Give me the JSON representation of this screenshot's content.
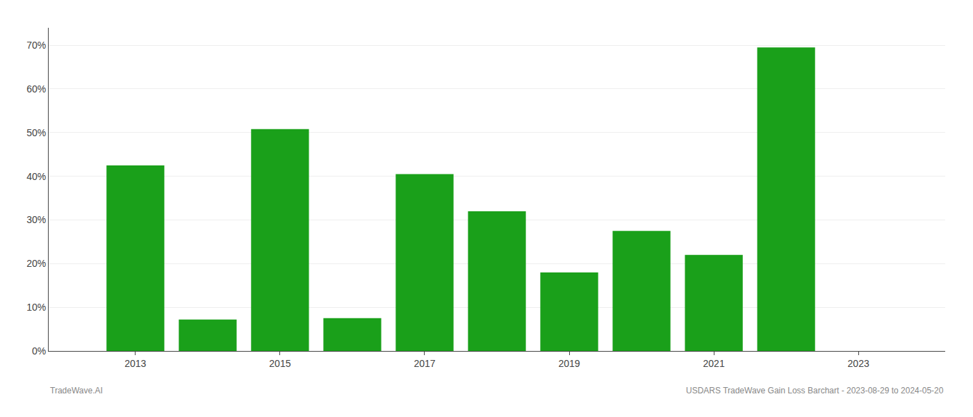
{
  "chart_data": {
    "type": "bar",
    "x": [
      2013,
      2014,
      2015,
      2016,
      2017,
      2018,
      2019,
      2020,
      2021,
      2022
    ],
    "values": [
      0.425,
      0.072,
      0.508,
      0.075,
      0.405,
      0.32,
      0.18,
      0.275,
      0.22,
      0.695
    ],
    "color": "#1aa01a",
    "xlim": [
      2011.8,
      2024.2
    ],
    "xticks": [
      2013,
      2015,
      2017,
      2019,
      2021,
      2023
    ],
    "ylim": [
      0,
      0.74
    ],
    "yticks": [
      {
        "value": 0,
        "label": "0%"
      },
      {
        "value": 0.1,
        "label": "10%"
      },
      {
        "value": 0.2,
        "label": "20%"
      },
      {
        "value": 0.3,
        "label": "30%"
      },
      {
        "value": 0.4,
        "label": "40%"
      },
      {
        "value": 0.5,
        "label": "50%"
      },
      {
        "value": 0.6,
        "label": "60%"
      },
      {
        "value": 0.7,
        "label": "70%"
      }
    ],
    "grid": true,
    "annotations": [
      "TradeWave.AI",
      "USDARS TradeWave Gain Loss Barchart - 2023-08-29 to 2024-05-20"
    ]
  }
}
